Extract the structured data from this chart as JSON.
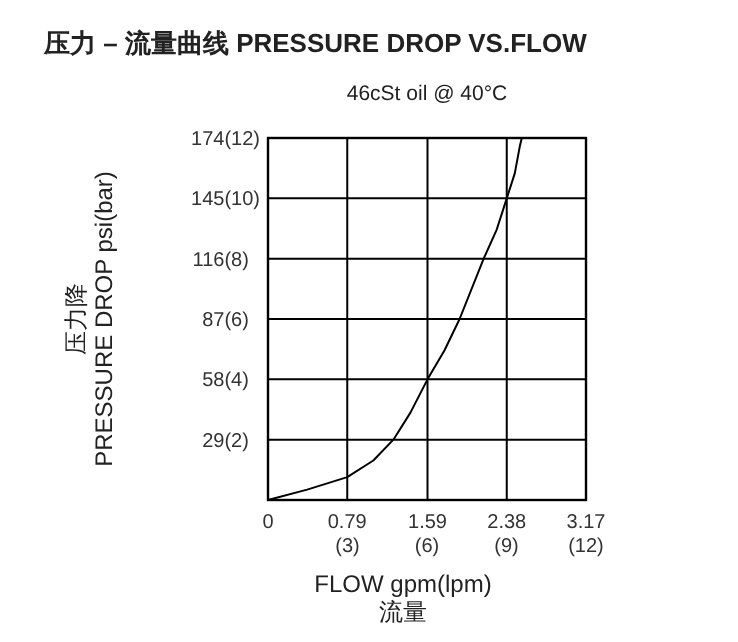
{
  "chart_data": {
    "type": "line",
    "title": "压力 – 流量曲线 PRESSURE DROP VS.FLOW",
    "subtitle": "46cSt oil @ 40°C",
    "xlabel": "FLOW gpm(lpm)\n流量",
    "ylabel": "压力降\nPRESSURE DROP psi(bar)",
    "series": [
      {
        "color": "#000000",
        "x": [
          0,
          0.39,
          0.79,
          1.05,
          1.25,
          1.42,
          1.59,
          1.76,
          1.91,
          2.15,
          2.28,
          2.38,
          2.46,
          2.51,
          2.53
        ],
        "values": [
          0,
          5,
          11,
          19,
          29,
          42,
          58,
          72,
          87,
          116,
          130,
          145,
          157,
          170,
          174
        ]
      }
    ],
    "xlim": [
      0,
      3.17
    ],
    "ylim": [
      0,
      174
    ],
    "xticks": [
      0,
      0.79,
      1.59,
      2.38,
      3.17
    ],
    "yticks": [
      29,
      58,
      87,
      116,
      145,
      174
    ],
    "x2lim": [
      0,
      12
    ],
    "x2ticks": [
      {
        "value": 3,
        "label": "(3)"
      },
      {
        "value": 6,
        "label": "(6)"
      },
      {
        "value": 9,
        "label": "(9)"
      },
      {
        "value": 12,
        "label": "(12)"
      }
    ],
    "y2lim": [
      0,
      12
    ],
    "y2ticks": [
      {
        "value": 2,
        "label": "(2)"
      },
      {
        "value": 4,
        "label": "(4)"
      },
      {
        "value": 6,
        "label": "(6)"
      },
      {
        "value": 8,
        "label": "(8)"
      },
      {
        "value": 10,
        "label": "(10)"
      },
      {
        "value": 12,
        "label": "(12)"
      }
    ],
    "grid": true,
    "marker": "none",
    "line_style": "solid"
  }
}
